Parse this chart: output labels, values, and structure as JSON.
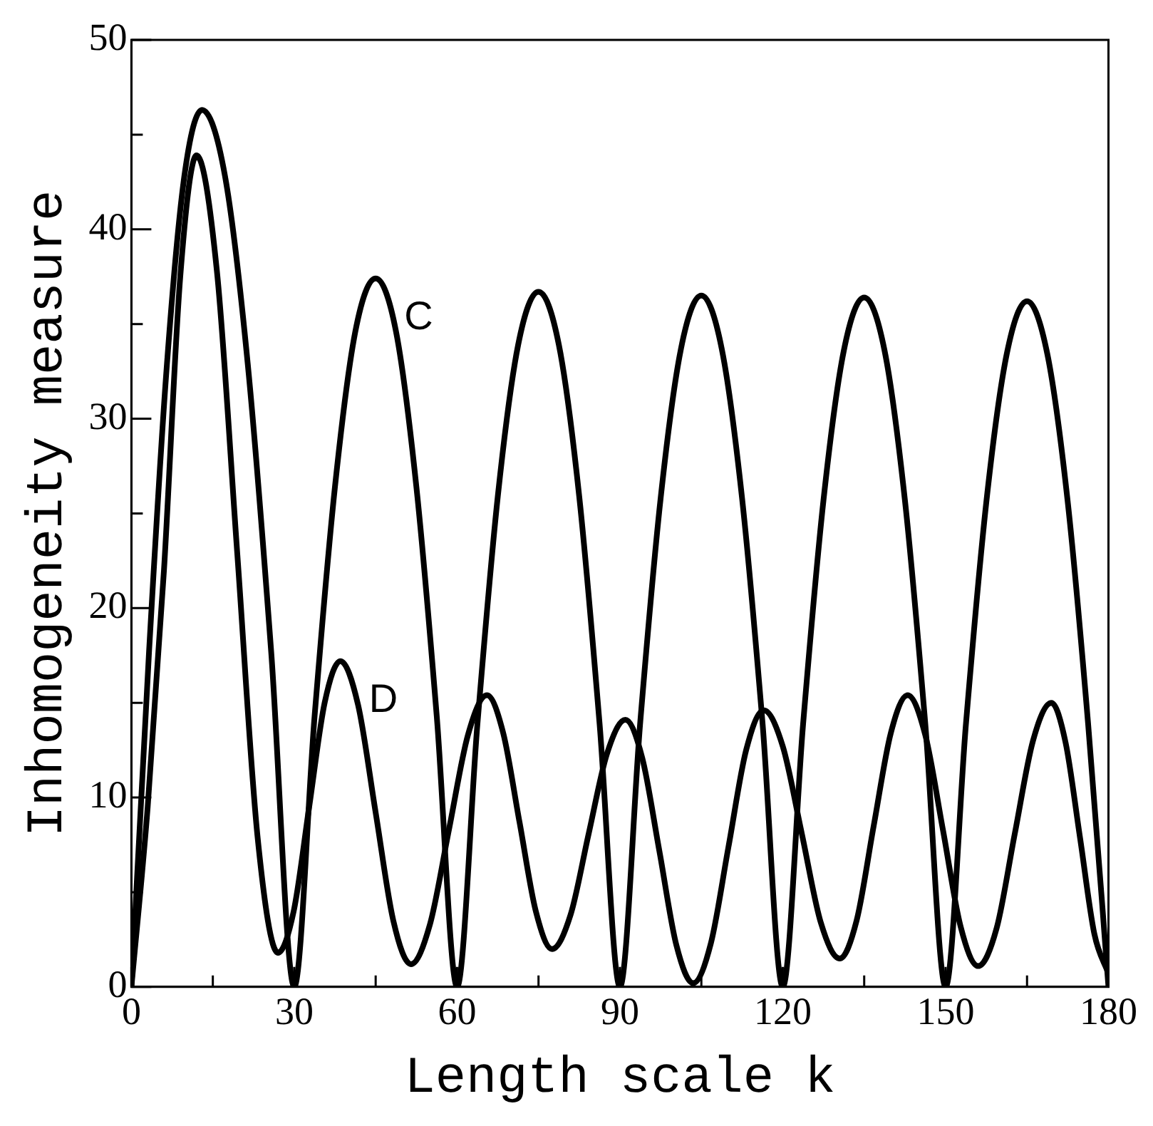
{
  "chart_data": {
    "type": "line",
    "xlabel": "Length scale k",
    "ylabel": "Inhomogeneity measure",
    "xlim": [
      0,
      180
    ],
    "ylim": [
      0,
      50
    ],
    "xticks": [
      0,
      {
        "value": 15,
        "label": null
      },
      30,
      {
        "value": 45,
        "label": null
      },
      60,
      {
        "value": 75,
        "label": null
      },
      90,
      {
        "value": 105,
        "label": null
      },
      120,
      {
        "value": 135,
        "label": null
      },
      150,
      {
        "value": 165,
        "label": null
      },
      180
    ],
    "yticks": [
      0,
      {
        "value": 5,
        "label": null
      },
      10,
      {
        "value": 15,
        "label": null
      },
      20,
      {
        "value": 25,
        "label": null
      },
      30,
      {
        "value": 35,
        "label": null
      },
      40,
      {
        "value": 45,
        "label": null
      },
      50
    ],
    "grid": false,
    "legend": false,
    "marker": "none",
    "line_style": "solid",
    "series": [
      {
        "name": "C",
        "color": "#000000",
        "x": [
          0,
          3.25,
          6.5,
          9.75,
          13,
          17.25,
          21.5,
          25.75,
          30,
          33.75,
          37.5,
          41.25,
          45,
          48.75,
          52.5,
          56.25,
          60,
          63.75,
          67.5,
          71.25,
          75,
          78.75,
          82.5,
          86.25,
          90,
          93.75,
          97.5,
          101.25,
          105,
          108.75,
          112.5,
          116.25,
          120,
          123.75,
          127.5,
          131.25,
          135,
          138.75,
          142.5,
          146.25,
          150,
          153.75,
          157.5,
          161.25,
          165,
          168.75,
          172.5,
          176.25,
          180
        ],
        "values": [
          0,
          17.7,
          32.7,
          42.8,
          46.3,
          42.8,
          32.7,
          17.7,
          0,
          14.3,
          26.4,
          34.6,
          37.4,
          34.6,
          26.4,
          14.3,
          0,
          13.9,
          25.9,
          33.9,
          36.7,
          33.9,
          25.9,
          13.9,
          0,
          14.0,
          25.8,
          33.7,
          36.5,
          33.7,
          25.8,
          14.0,
          0,
          13.9,
          25.7,
          33.6,
          36.4,
          33.6,
          25.7,
          13.9,
          0,
          13.9,
          25.6,
          33.4,
          36.2,
          33.4,
          25.6,
          13.9,
          0
        ]
      },
      {
        "name": "D",
        "color": "#000000",
        "x": [
          0,
          3,
          6,
          9,
          12,
          15.75,
          19.5,
          23.25,
          27,
          29.9,
          32.75,
          35.6,
          38.5,
          41.75,
          45,
          48.25,
          51.5,
          55,
          58.5,
          62,
          65.5,
          68.5,
          71.5,
          74.5,
          77.5,
          80.9,
          84.25,
          87.6,
          91,
          94.1,
          97.25,
          100.4,
          103.5,
          106.75,
          110,
          113.25,
          116.5,
          120,
          123.5,
          127,
          130.5,
          133.6,
          136.75,
          139.9,
          143,
          146.25,
          149.5,
          152.75,
          156,
          159.4,
          162.75,
          166.1,
          169.5,
          172.1,
          174.75,
          177.4,
          180
        ],
        "values": [
          0,
          9.5,
          22.0,
          37.5,
          43.9,
          37.8,
          22.9,
          7.9,
          1.8,
          4.0,
          9.5,
          15.0,
          17.2,
          14.9,
          9.2,
          3.5,
          1.2,
          3.3,
          8.3,
          13.3,
          15.4,
          13.4,
          8.7,
          4.0,
          2.0,
          3.8,
          8.1,
          12.3,
          14.1,
          12.1,
          7.2,
          2.2,
          0.2,
          2.3,
          7.4,
          12.5,
          14.6,
          12.7,
          8.1,
          3.4,
          1.5,
          3.5,
          8.5,
          13.4,
          15.4,
          13.3,
          8.3,
          3.2,
          1.1,
          3.1,
          8.1,
          13.0,
          15.0,
          12.9,
          7.9,
          2.8,
          0.7
        ]
      }
    ]
  }
}
